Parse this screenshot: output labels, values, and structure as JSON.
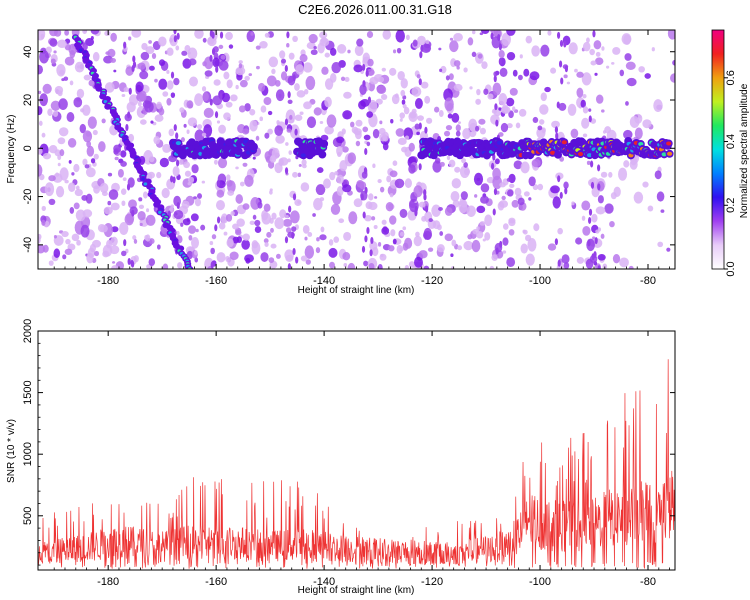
{
  "title": "C2E6.2026.011.00.31.G18",
  "colors": {
    "snr_line": "#ee3333",
    "scatter": [
      "#d9b3f5",
      "#b877ec",
      "#9540e8",
      "#7a16e6"
    ],
    "trail_core": [
      "#3a20e8",
      "#1da2e8",
      "#2fe0a0",
      "#c8f020",
      "#f08020",
      "#e82030"
    ],
    "colorbar": [
      "#ffffff",
      "#e8ccf8",
      "#a040f0",
      "#3010f0",
      "#0080ff",
      "#00e0e0",
      "#20e860",
      "#c0f020",
      "#f0a010",
      "#f02020",
      "#f00080"
    ]
  },
  "chart_data": [
    {
      "type": "heatmap",
      "xlabel": "Height of straight line (km)",
      "ylabel": "Frequency (Hz)",
      "xlim": [
        -193,
        -75
      ],
      "ylim": [
        -50,
        49
      ],
      "x_ticks": [
        -180,
        -160,
        -140,
        -120,
        -100,
        -80
      ],
      "y_ticks": [
        -40,
        -20,
        0,
        20,
        40
      ],
      "colorbar": {
        "label": "Normalized spectral amplitude",
        "range": [
          0,
          0.75
        ],
        "ticks": [
          "0.0",
          "0.2",
          "0.4",
          "0.6"
        ],
        "tick_values": [
          0,
          0.2,
          0.4,
          0.6
        ]
      },
      "features": [
        {
          "kind": "diagonal_trail",
          "from": [
            -186,
            46
          ],
          "to": [
            -165,
            -50
          ]
        },
        {
          "kind": "horizontal_band",
          "x_range": [
            -168,
            -153
          ],
          "frequency": 0
        },
        {
          "kind": "horizontal_band",
          "x_range": [
            -145,
            -140
          ],
          "frequency": 0
        },
        {
          "kind": "horizontal_band",
          "x_range": [
            -122,
            -76
          ],
          "frequency": 0
        }
      ]
    },
    {
      "type": "line",
      "xlabel": "Height of straight line (km)",
      "ylabel": "SNR (10 * v/v)",
      "xlim": [
        -193,
        -75
      ],
      "ylim": [
        60,
        2000
      ],
      "x_ticks": [
        -180,
        -160,
        -140,
        -120,
        -100,
        -80
      ],
      "y_ticks": [
        500,
        1000,
        1500,
        2000
      ],
      "series": [
        {
          "envelope": {
            "x": [
              -193,
              -185,
              -178,
              -170,
              -164,
              -156,
              -150,
              -144,
              -137,
              -130,
              -124,
              -118,
              -112,
              -107,
              -104,
              -102,
              -98,
              -94,
              -90,
              -87,
              -84,
              -81,
              -78,
              -76,
              -75
            ],
            "mean": [
              220,
              260,
              320,
              280,
              320,
              310,
              280,
              300,
              260,
              240,
              230,
              210,
              240,
              280,
              380,
              500,
              470,
              460,
              480,
              540,
              560,
              580,
              600,
              640,
              680
            ],
            "peak": [
              520,
              640,
              740,
              600,
              820,
              860,
              780,
              840,
              560,
              520,
              460,
              420,
              520,
              680,
              1050,
              1130,
              1080,
              1150,
              1230,
              1440,
              1530,
              1580,
              1640,
              2000,
              1720
            ]
          }
        }
      ]
    }
  ]
}
